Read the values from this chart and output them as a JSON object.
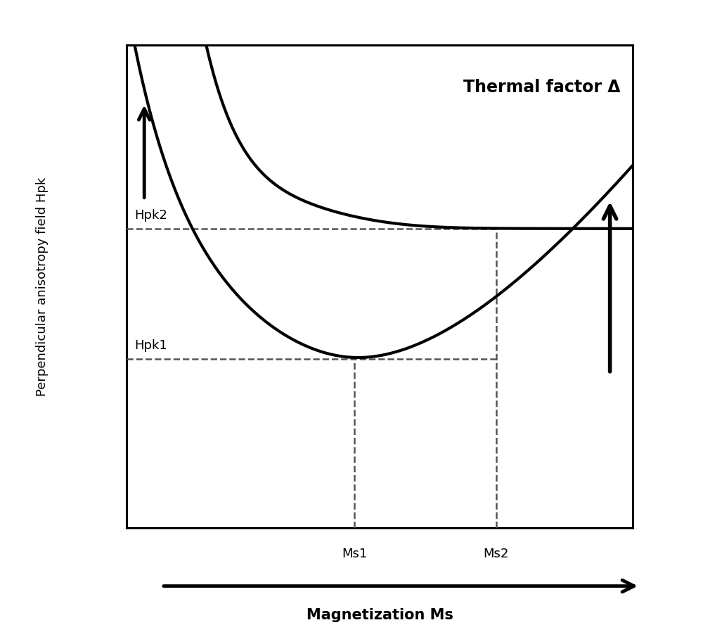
{
  "title": "Thermal factor Δ",
  "xlabel": "Magnetization Ms",
  "ylabel": "Perpendicular anisotropy field Hpk",
  "background_color": "#ffffff",
  "xlim": [
    0,
    10
  ],
  "ylim": [
    0,
    10
  ],
  "Hpk1_y": 3.5,
  "Hpk2_y": 6.2,
  "Ms1_x": 4.5,
  "Ms2_x": 7.3,
  "curve_color": "#000000",
  "dashed_color": "#555555",
  "line_width": 3.0,
  "dashed_lw": 1.8,
  "arrow_lw": 3.5,
  "arrow_mutation_scale": 28
}
